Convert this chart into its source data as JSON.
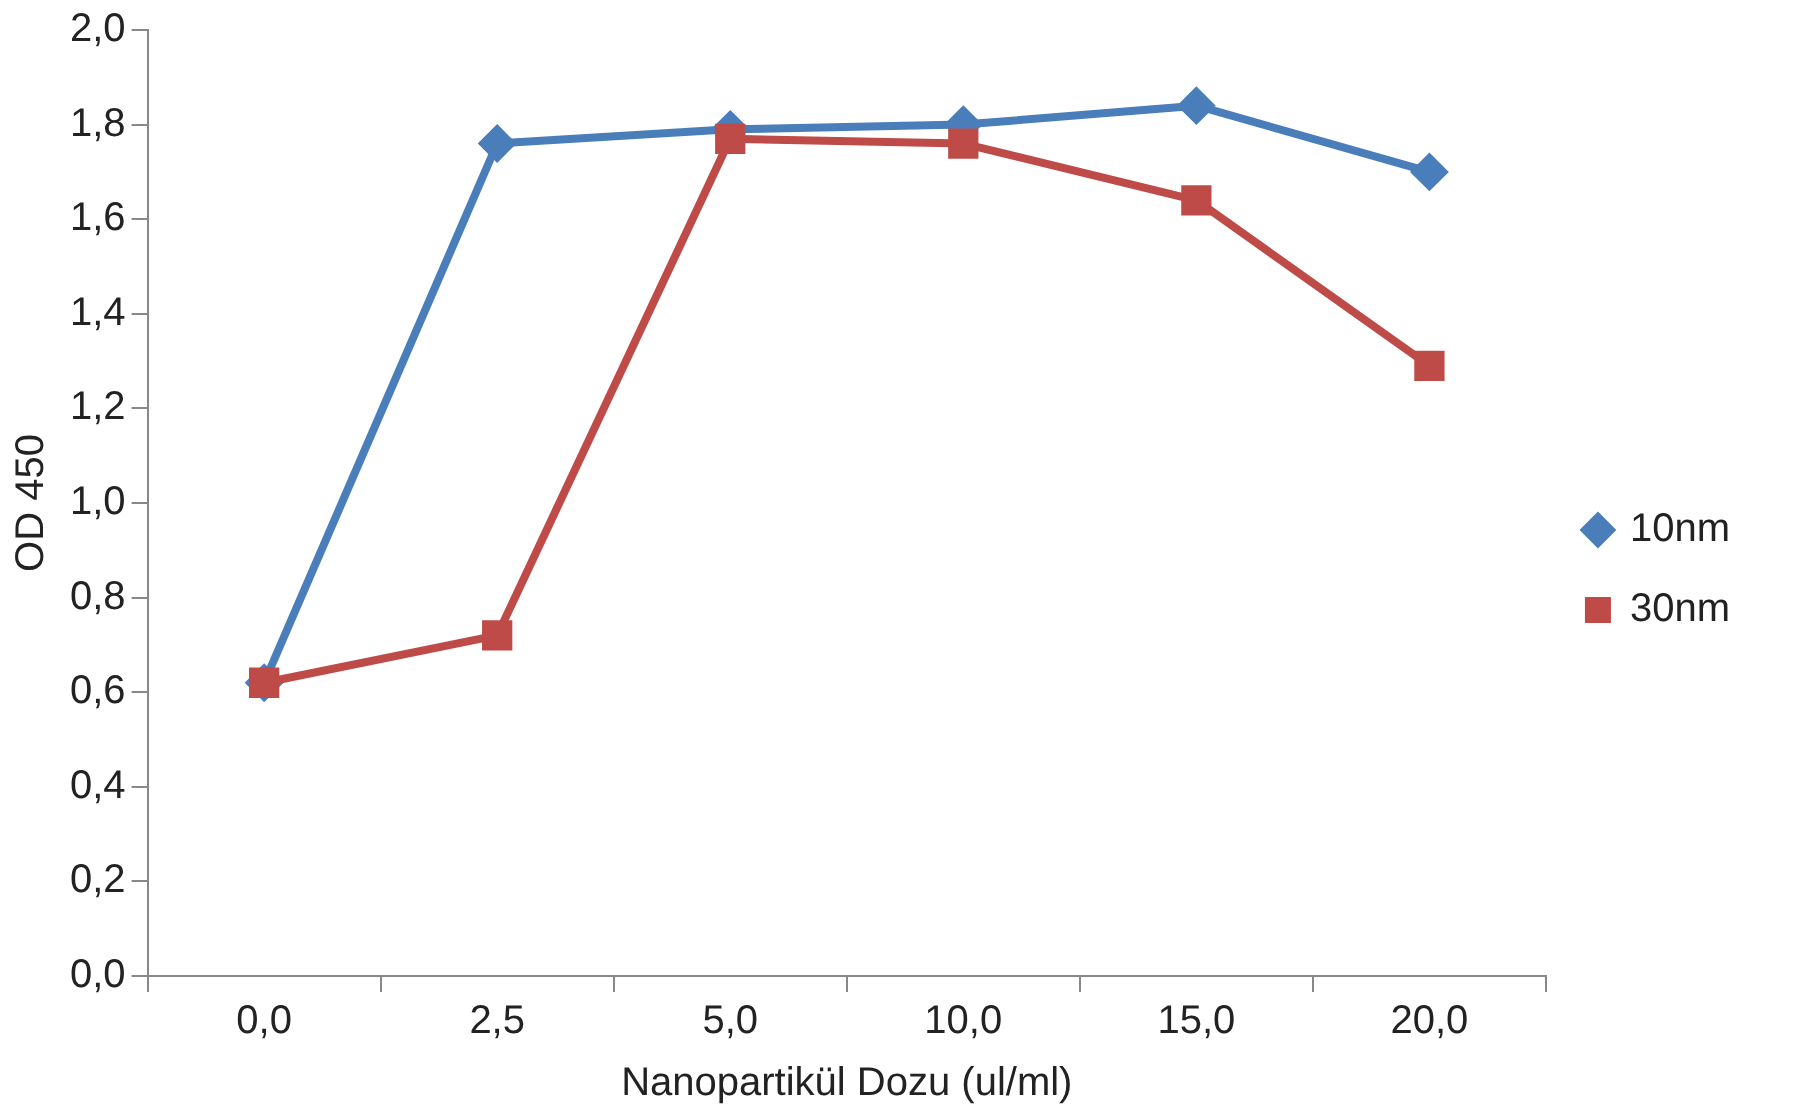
{
  "chart_data": {
    "type": "line",
    "xlabel": "Nanopartikül Dozu (ul/ml)",
    "ylabel": "OD 450",
    "categories": [
      "0,0",
      "2,5",
      "5,0",
      "10,0",
      "15,0",
      "20,0"
    ],
    "ylim": [
      0,
      2
    ],
    "yticks": [
      {
        "value": 0,
        "label": "0,0"
      },
      {
        "value": 0.2,
        "label": "0,2"
      },
      {
        "value": 0.4,
        "label": "0,4"
      },
      {
        "value": 0.6,
        "label": "0,6"
      },
      {
        "value": 0.8,
        "label": "0,8"
      },
      {
        "value": 1,
        "label": "1,0"
      },
      {
        "value": 1.2,
        "label": "1,2"
      },
      {
        "value": 1.4,
        "label": "1,4"
      },
      {
        "value": 1.6,
        "label": "1,6"
      },
      {
        "value": 1.8,
        "label": "1,8"
      },
      {
        "value": 2,
        "label": "2,0"
      }
    ],
    "grid": false,
    "legend": "right",
    "line_style": "solid",
    "series": [
      {
        "name": "10nm",
        "color": "#4a7ebb",
        "marker": "diamond",
        "values": [
          0.62,
          1.76,
          1.79,
          1.8,
          1.84,
          1.7
        ]
      },
      {
        "name": "30nm",
        "color": "#be4b48",
        "marker": "square",
        "values": [
          0.62,
          0.72,
          1.77,
          1.76,
          1.64,
          1.29
        ]
      }
    ]
  }
}
